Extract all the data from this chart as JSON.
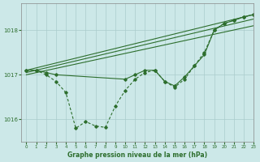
{
  "title": "Graphe pression niveau de la mer (hPa)",
  "bg_color": "#cce8e8",
  "grid_color": "#aacccc",
  "line_color": "#2d6e2d",
  "xlim": [
    -0.5,
    23
  ],
  "ylim": [
    1015.5,
    1018.6
  ],
  "yticks": [
    1016,
    1017,
    1018
  ],
  "xticks": [
    0,
    1,
    2,
    3,
    4,
    5,
    6,
    7,
    8,
    9,
    10,
    11,
    12,
    13,
    14,
    15,
    16,
    17,
    18,
    19,
    20,
    21,
    22,
    23
  ],
  "line1": {
    "x": [
      0,
      23
    ],
    "y": [
      1017.1,
      1018.35
    ]
  },
  "line2": {
    "x": [
      0,
      23
    ],
    "y": [
      1017.05,
      1018.25
    ]
  },
  "line3": {
    "x": [
      0,
      23
    ],
    "y": [
      1017.0,
      1018.1
    ]
  },
  "line4_markers": {
    "x": [
      0,
      1,
      2,
      3,
      10,
      11,
      12,
      13,
      14,
      15,
      16,
      17,
      18,
      19,
      20,
      21,
      22,
      23
    ],
    "y": [
      1017.1,
      1017.1,
      1017.05,
      1017.0,
      1016.9,
      1017.0,
      1017.1,
      1017.1,
      1016.85,
      1016.75,
      1016.95,
      1017.2,
      1017.45,
      1018.0,
      1018.15,
      1018.22,
      1018.3,
      1018.35
    ]
  },
  "line5_dip": {
    "x": [
      0,
      1,
      2,
      3,
      4,
      5,
      6,
      7,
      8,
      9,
      10,
      11,
      12,
      13,
      14,
      15,
      16,
      17,
      18,
      19,
      20,
      21,
      22,
      23
    ],
    "y": [
      1017.1,
      1017.1,
      1017.0,
      1016.85,
      1016.6,
      1015.8,
      1015.95,
      1015.85,
      1015.82,
      1016.3,
      1016.65,
      1016.9,
      1017.05,
      1017.1,
      1016.85,
      1016.72,
      1016.9,
      1017.2,
      1017.5,
      1018.0,
      1018.15,
      1018.22,
      1018.3,
      1018.35
    ]
  }
}
